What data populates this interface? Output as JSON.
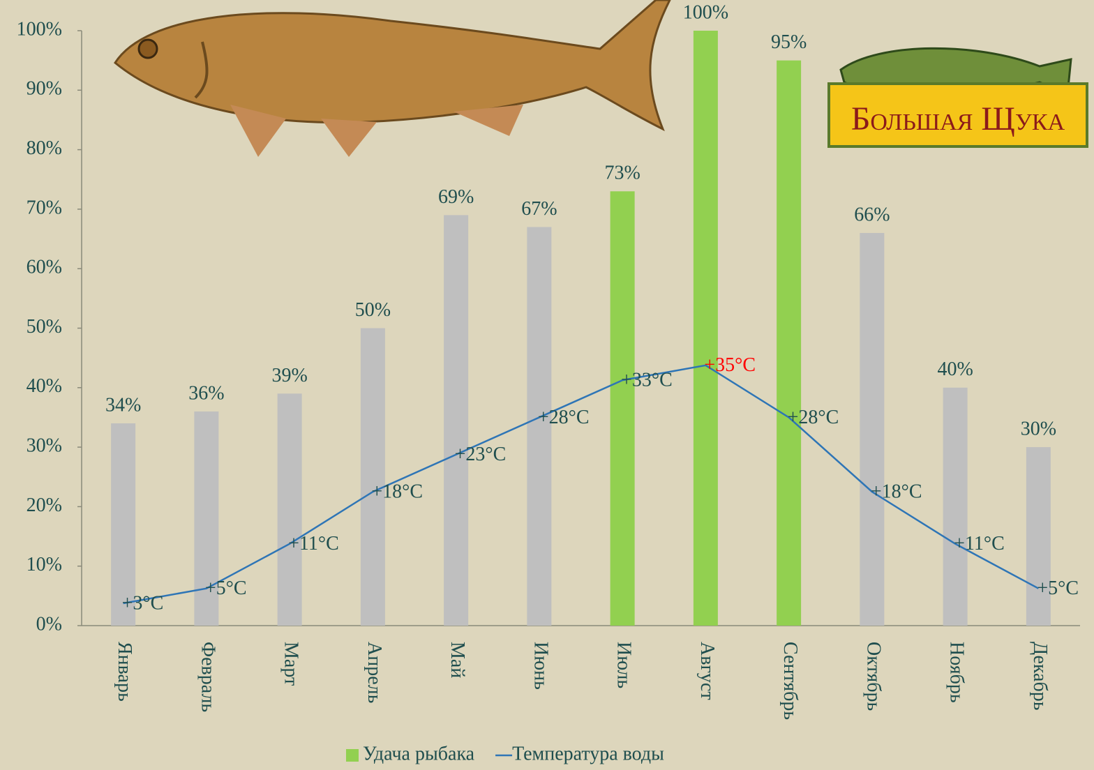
{
  "chart_data": {
    "type": "bar",
    "categories": [
      "Январь",
      "Февраль",
      "Март",
      "Апрель",
      "Май",
      "Июнь",
      "Июль",
      "Август",
      "Сентябрь",
      "Октябрь",
      "Ноябрь",
      "Декабрь"
    ],
    "series": [
      {
        "name": "Удача рыбака",
        "type": "bar",
        "color": "#92d050",
        "colors": [
          "#bfbfbf",
          "#bfbfbf",
          "#bfbfbf",
          "#bfbfbf",
          "#bfbfbf",
          "#bfbfbf",
          "#92d050",
          "#92d050",
          "#92d050",
          "#bfbfbf",
          "#bfbfbf",
          "#bfbfbf"
        ],
        "values": [
          34,
          36,
          39,
          50,
          69,
          67,
          73,
          100,
          95,
          66,
          40,
          30
        ],
        "value_labels": [
          "34%",
          "36%",
          "39%",
          "50%",
          "69%",
          "67%",
          "73%",
          "100%",
          "95%",
          "66%",
          "40%",
          "30%"
        ]
      },
      {
        "name": "Температура воды",
        "type": "line",
        "axis": "y2",
        "color": "#2e75b6",
        "values": [
          3,
          5,
          11,
          18,
          23,
          28,
          33,
          35,
          28,
          18,
          11,
          5
        ],
        "value_labels": [
          "+3°C",
          "+5°C",
          "+11°C",
          "+18°C",
          "+23°C",
          "+28°C",
          "+33°C",
          "+35°C",
          "+28°C",
          "+18°C",
          "+11°C",
          "+5°C"
        ],
        "value_label_colors": [
          "#1f4e4e",
          "#1f4e4e",
          "#1f4e4e",
          "#1f4e4e",
          "#1f4e4e",
          "#1f4e4e",
          "#1f4e4e",
          "#ff0000",
          "#1f4e4e",
          "#1f4e4e",
          "#1f4e4e",
          "#1f4e4e"
        ]
      }
    ],
    "ylim": [
      0,
      100
    ],
    "yticks": [
      {
        "value": 0,
        "label": "0%"
      },
      {
        "value": 10,
        "label": "10%"
      },
      {
        "value": 20,
        "label": "20%"
      },
      {
        "value": 30,
        "label": "30%"
      },
      {
        "value": 40,
        "label": "40%"
      },
      {
        "value": 50,
        "label": "50%"
      },
      {
        "value": 60,
        "label": "60%"
      },
      {
        "value": 70,
        "label": "70%"
      },
      {
        "value": 80,
        "label": "80%"
      },
      {
        "value": 90,
        "label": "90%"
      },
      {
        "value": 100,
        "label": "100%"
      }
    ],
    "y2lim": [
      0,
      80
    ],
    "grid": false,
    "legend": "bottom"
  },
  "logo": {
    "text": "Большая Щука"
  }
}
